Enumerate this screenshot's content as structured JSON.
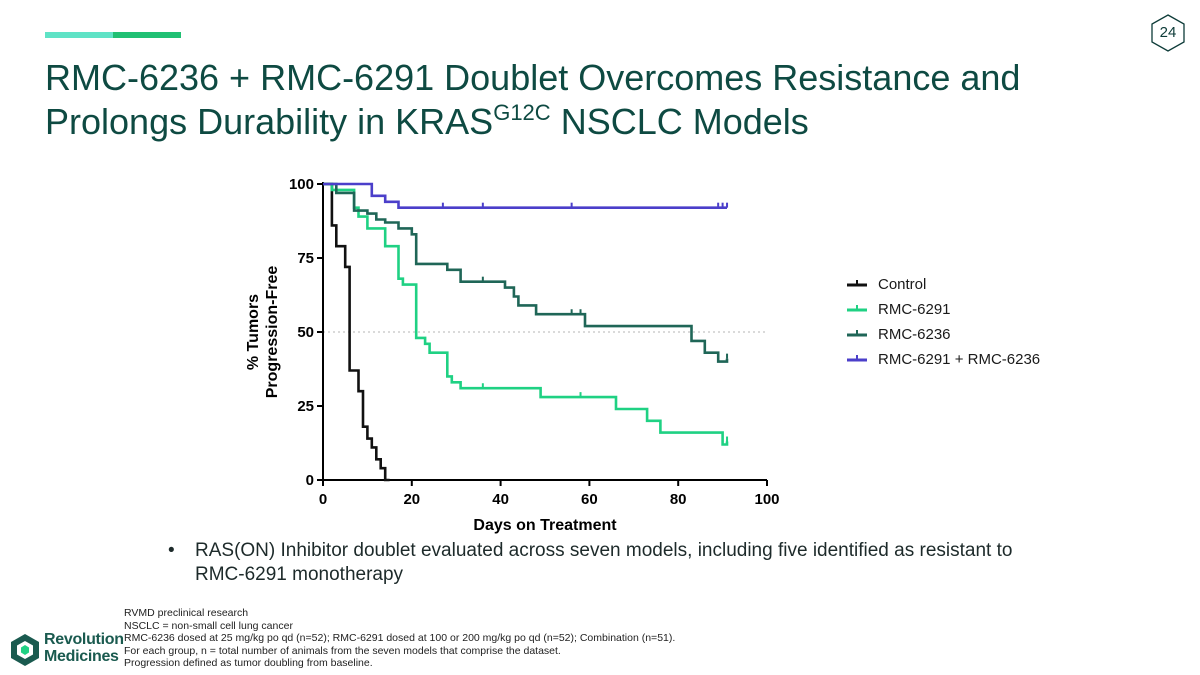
{
  "slide": {
    "page_number": "24",
    "title_line1": "RMC-6236 + RMC-6291 Doublet Overcomes Resistance and",
    "title_line2_pre": "Prolongs Durability in KRAS",
    "title_sup": "G12C",
    "title_line2_post": " NSCLC Models",
    "accent_colors": [
      "#5fe3c6",
      "#20c073"
    ]
  },
  "bullet": {
    "marker": "•",
    "text": "RAS(ON) Inhibitor doublet evaluated across seven models, including five identified as resistant to RMC-6291 monotherapy"
  },
  "footnotes": [
    "RVMD preclinical research",
    "NSCLC = non-small cell lung cancer",
    "RMC-6236 dosed at 25 mg/kg po qd (n=52); RMC-6291 dosed at 100 or 200 mg/kg po qd (n=52); Combination (n=51).",
    "For each group, n = total number of animals from the seven models that comprise the dataset.",
    "Progression defined as tumor doubling from baseline."
  ],
  "logo": {
    "line1": "Revolution",
    "line2": "Medicines",
    "color": "#1a5a4f"
  },
  "chart_data": {
    "type": "line",
    "subtype": "kaplan-meier step",
    "xlabel": "Days on Treatment",
    "ylabel_line1": "% Tumors",
    "ylabel_line2": "Progression-Free",
    "xlim": [
      0,
      100
    ],
    "ylim": [
      0,
      100
    ],
    "xticks": [
      0,
      20,
      40,
      60,
      80,
      100
    ],
    "yticks": [
      0,
      25,
      50,
      75,
      100
    ],
    "reference_line_y": 50,
    "legend_position": "right",
    "series": [
      {
        "name": "Control",
        "color": "#111111",
        "steps": [
          [
            0,
            100
          ],
          [
            2,
            100
          ],
          [
            2,
            86
          ],
          [
            3,
            86
          ],
          [
            3,
            79
          ],
          [
            5,
            79
          ],
          [
            5,
            72
          ],
          [
            6,
            72
          ],
          [
            6,
            37
          ],
          [
            8,
            37
          ],
          [
            8,
            30
          ],
          [
            9,
            30
          ],
          [
            9,
            18
          ],
          [
            10,
            18
          ],
          [
            10,
            14
          ],
          [
            11,
            14
          ],
          [
            11,
            11
          ],
          [
            12,
            11
          ],
          [
            12,
            7
          ],
          [
            13,
            7
          ],
          [
            13,
            4
          ],
          [
            14,
            4
          ],
          [
            14,
            0
          ],
          [
            15,
            0
          ]
        ],
        "censor": []
      },
      {
        "name": "RMC-6291",
        "color": "#1fd183",
        "steps": [
          [
            0,
            100
          ],
          [
            2,
            100
          ],
          [
            2,
            98
          ],
          [
            7,
            98
          ],
          [
            7,
            92
          ],
          [
            8,
            92
          ],
          [
            8,
            89
          ],
          [
            10,
            89
          ],
          [
            10,
            85
          ],
          [
            14,
            85
          ],
          [
            14,
            79
          ],
          [
            17,
            79
          ],
          [
            17,
            68
          ],
          [
            18,
            68
          ],
          [
            18,
            66
          ],
          [
            21,
            66
          ],
          [
            21,
            48
          ],
          [
            23,
            48
          ],
          [
            23,
            46
          ],
          [
            24,
            46
          ],
          [
            24,
            43
          ],
          [
            28,
            43
          ],
          [
            28,
            35
          ],
          [
            29,
            35
          ],
          [
            29,
            33
          ],
          [
            31,
            33
          ],
          [
            31,
            31
          ],
          [
            49,
            31
          ],
          [
            49,
            28
          ],
          [
            66,
            28
          ],
          [
            66,
            24
          ],
          [
            73,
            24
          ],
          [
            73,
            20
          ],
          [
            76,
            20
          ],
          [
            76,
            16
          ],
          [
            90,
            16
          ],
          [
            90,
            12
          ],
          [
            91,
            12
          ],
          [
            91,
            13
          ]
        ],
        "censor": [
          [
            36,
            31
          ],
          [
            58,
            28
          ],
          [
            91,
            13
          ]
        ]
      },
      {
        "name": "RMC-6236",
        "color": "#1f6657",
        "steps": [
          [
            0,
            100
          ],
          [
            3,
            100
          ],
          [
            3,
            97
          ],
          [
            7,
            97
          ],
          [
            7,
            91
          ],
          [
            10,
            91
          ],
          [
            10,
            90
          ],
          [
            12,
            90
          ],
          [
            12,
            88
          ],
          [
            14,
            88
          ],
          [
            14,
            87
          ],
          [
            17,
            87
          ],
          [
            17,
            85
          ],
          [
            20,
            85
          ],
          [
            20,
            83
          ],
          [
            21,
            83
          ],
          [
            21,
            73
          ],
          [
            28,
            73
          ],
          [
            28,
            71
          ],
          [
            31,
            71
          ],
          [
            31,
            67
          ],
          [
            41,
            67
          ],
          [
            41,
            65
          ],
          [
            43,
            65
          ],
          [
            43,
            62
          ],
          [
            44,
            62
          ],
          [
            44,
            59
          ],
          [
            48,
            59
          ],
          [
            48,
            56
          ],
          [
            59,
            56
          ],
          [
            59,
            52
          ],
          [
            83,
            52
          ],
          [
            83,
            47
          ],
          [
            86,
            47
          ],
          [
            86,
            43
          ],
          [
            89,
            43
          ],
          [
            89,
            40
          ],
          [
            91,
            40
          ],
          [
            91,
            41
          ]
        ],
        "censor": [
          [
            36,
            67
          ],
          [
            56,
            56
          ],
          [
            58,
            56
          ],
          [
            91,
            41
          ]
        ]
      },
      {
        "name": "RMC-6291 + RMC-6236",
        "color": "#4b3fca",
        "steps": [
          [
            0,
            100
          ],
          [
            11,
            100
          ],
          [
            11,
            96
          ],
          [
            14,
            96
          ],
          [
            14,
            94
          ],
          [
            17,
            94
          ],
          [
            17,
            92
          ],
          [
            91,
            92
          ]
        ],
        "censor": [
          [
            27,
            92
          ],
          [
            36,
            92
          ],
          [
            56,
            92
          ],
          [
            89,
            92
          ],
          [
            90,
            92
          ],
          [
            91,
            92
          ]
        ]
      }
    ]
  }
}
